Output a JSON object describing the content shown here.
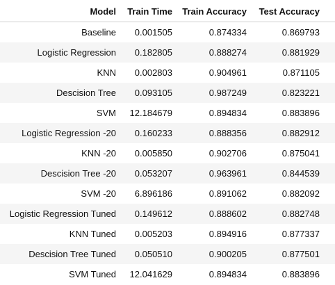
{
  "table": {
    "columns": [
      "Model",
      "Train Time",
      "Train Accuracy",
      "Test Accuracy"
    ],
    "rows": [
      [
        "Baseline",
        "0.001505",
        "0.874334",
        "0.869793"
      ],
      [
        "Logistic Regression",
        "0.182805",
        "0.888274",
        "0.881929"
      ],
      [
        "KNN",
        "0.002803",
        "0.904961",
        "0.871105"
      ],
      [
        "Descision Tree",
        "0.093105",
        "0.987249",
        "0.823221"
      ],
      [
        "SVM",
        "12.184679",
        "0.894834",
        "0.883896"
      ],
      [
        "Logistic Regression -20",
        "0.160233",
        "0.888356",
        "0.882912"
      ],
      [
        "KNN -20",
        "0.005850",
        "0.902706",
        "0.875041"
      ],
      [
        "Descision Tree -20",
        "0.053207",
        "0.963961",
        "0.844539"
      ],
      [
        "SVM -20",
        "6.896186",
        "0.891062",
        "0.882092"
      ],
      [
        "Logistic Regression Tuned",
        "0.149612",
        "0.888602",
        "0.882748"
      ],
      [
        "KNN Tuned",
        "0.005203",
        "0.894916",
        "0.877337"
      ],
      [
        "Descision Tree Tuned",
        "0.050510",
        "0.900205",
        "0.877501"
      ],
      [
        "SVM Tuned",
        "12.041629",
        "0.894834",
        "0.883896"
      ]
    ]
  }
}
